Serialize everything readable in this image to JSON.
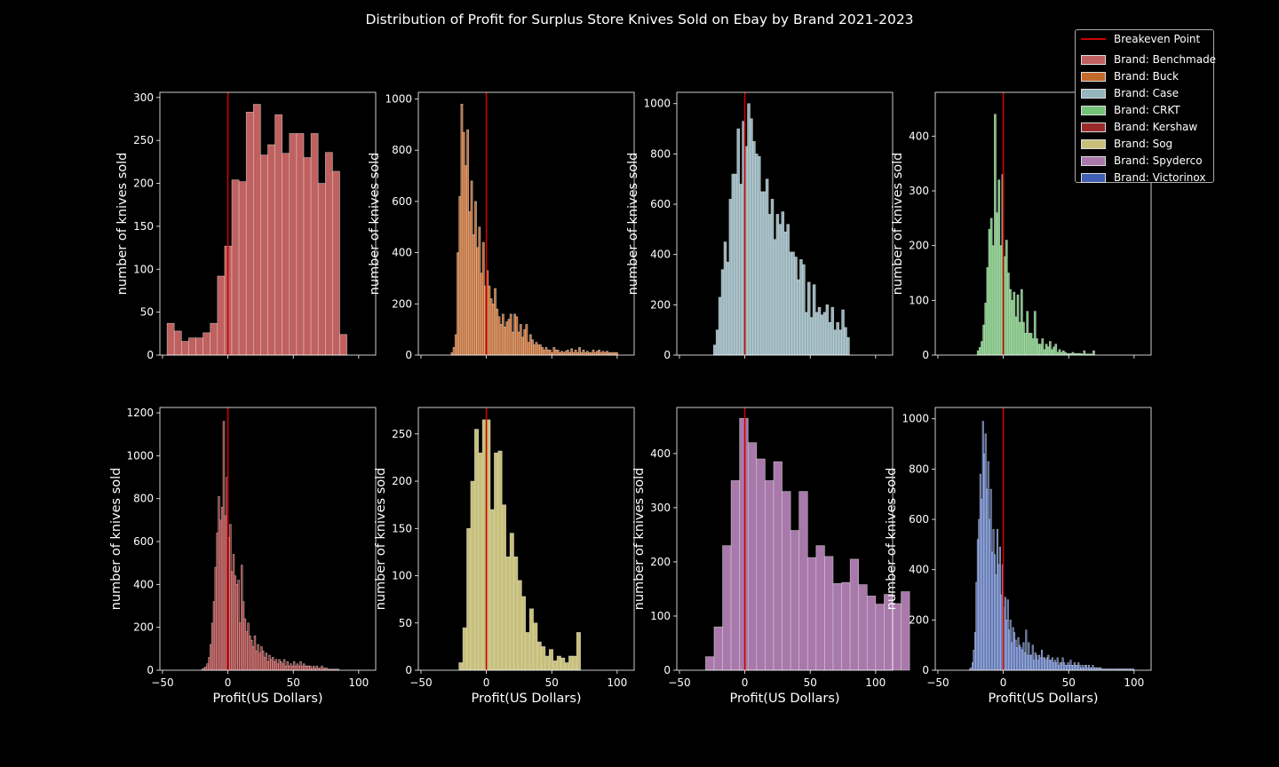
{
  "title": "Distribution of Profit for Surplus Store Knives Sold on Ebay by Brand 2021-2023",
  "legend": {
    "breakeven_label": "Breakeven Point",
    "breakeven_color": "#cc0000",
    "entries": [
      {
        "label": "Brand: Benchmade",
        "color": "#c0605f"
      },
      {
        "label": "Brand: Buck",
        "color": "#c4692c"
      },
      {
        "label": "Brand: Case",
        "color": "#96b4bc"
      },
      {
        "label": "Brand: CRKT",
        "color": "#74c276"
      },
      {
        "label": "Brand: Kershaw",
        "color": "#9a2a2a"
      },
      {
        "label": "Brand: Sog",
        "color": "#c8c078"
      },
      {
        "label": "Brand: Spyderco",
        "color": "#a879aa"
      },
      {
        "label": "Brand: Victorinox",
        "color": "#3f5fb4"
      }
    ]
  },
  "chart_data": [
    {
      "type": "bar",
      "brand": "Benchmade",
      "color": "#c0605f",
      "ylabel": "number of knives sold",
      "xlabel": "",
      "xlim": [
        -52,
        113
      ],
      "ylim": [
        0,
        306
      ],
      "yticks": [
        0,
        50,
        100,
        150,
        200,
        250,
        300
      ],
      "xticks": [
        -50,
        0,
        50,
        100
      ],
      "show_xticklabels": false,
      "bin_start": -46.5,
      "bin_width": 5.5,
      "values": [
        37,
        28,
        16,
        20,
        20,
        26,
        37,
        92,
        127,
        204,
        202,
        283,
        292,
        233,
        245,
        280,
        235,
        258,
        258,
        230,
        258,
        200,
        236,
        214,
        24
      ]
    },
    {
      "type": "bar",
      "brand": "Buck",
      "color": "#c4692c",
      "ylabel": "number of knives sold",
      "xlabel": "",
      "xlim": [
        -52,
        113
      ],
      "ylim": [
        0,
        1026
      ],
      "yticks": [
        0,
        200,
        400,
        600,
        800,
        1000
      ],
      "xticks": [
        -50,
        0,
        50,
        100
      ],
      "show_xticklabels": false,
      "bin_start": -27,
      "bin_width": 1.5,
      "values": [
        10,
        30,
        80,
        400,
        620,
        980,
        870,
        740,
        880,
        560,
        680,
        470,
        600,
        420,
        500,
        320,
        440,
        270,
        330,
        270,
        220,
        200,
        260,
        180,
        150,
        120,
        160,
        110,
        130,
        140,
        160,
        90,
        160,
        150,
        90,
        120,
        70,
        100,
        120,
        50,
        80,
        60,
        40,
        50,
        40,
        40,
        30,
        20,
        30,
        20,
        20,
        10,
        30,
        20,
        20,
        10,
        15,
        10,
        15,
        20,
        10,
        25,
        10,
        20,
        10,
        30,
        10,
        20,
        10,
        15,
        10,
        10,
        20,
        10,
        15,
        20,
        10,
        15,
        10,
        15,
        10,
        10,
        10,
        10,
        10
      ]
    },
    {
      "type": "bar",
      "brand": "Case",
      "color": "#96b4bc",
      "ylabel": "number of knives sold",
      "xlabel": "",
      "xlim": [
        -52,
        113
      ],
      "ylim": [
        0,
        1045
      ],
      "yticks": [
        0,
        200,
        400,
        600,
        800,
        1000
      ],
      "xticks": [
        -50,
        0,
        50,
        100
      ],
      "show_xticklabels": false,
      "bin_start": -24,
      "bin_width": 2,
      "values": [
        40,
        100,
        230,
        340,
        450,
        370,
        620,
        720,
        720,
        900,
        680,
        930,
        830,
        1000,
        940,
        850,
        800,
        790,
        650,
        650,
        700,
        560,
        620,
        460,
        560,
        520,
        570,
        490,
        520,
        410,
        410,
        390,
        300,
        380,
        360,
        170,
        290,
        150,
        280,
        170,
        190,
        160,
        170,
        200,
        130,
        190,
        100,
        130,
        100,
        180,
        110,
        70
      ]
    },
    {
      "type": "bar",
      "brand": "CRKT",
      "color": "#74c276",
      "ylabel": "number of knives sold",
      "xlabel": "",
      "xlim": [
        -52,
        113
      ],
      "ylim": [
        0,
        480
      ],
      "yticks": [
        0,
        100,
        200,
        300,
        400
      ],
      "xticks": [
        -50,
        0,
        50,
        100
      ],
      "show_xticklabels": false,
      "bin_start": -20,
      "bin_width": 1.45,
      "values": [
        8,
        14,
        25,
        55,
        95,
        160,
        230,
        250,
        200,
        440,
        260,
        320,
        200,
        330,
        180,
        210,
        150,
        120,
        100,
        115,
        70,
        110,
        60,
        120,
        60,
        40,
        80,
        40,
        40,
        30,
        80,
        30,
        20,
        20,
        30,
        10,
        20,
        15,
        25,
        10,
        15,
        20,
        5,
        10,
        5,
        8,
        5,
        3,
        3,
        3,
        5,
        3,
        3,
        3,
        3,
        2,
        8,
        2,
        2,
        2,
        2,
        8
      ]
    },
    {
      "type": "bar",
      "brand": "Kershaw",
      "color": "#9a2a2a",
      "ylabel": "number of knives sold",
      "xlabel": "Profit(US Dollars)",
      "xlim": [
        -52,
        113
      ],
      "ylim": [
        0,
        1225
      ],
      "yticks": [
        0,
        200,
        400,
        600,
        800,
        1000,
        1200
      ],
      "xticks": [
        -50,
        0,
        50,
        100
      ],
      "show_xticklabels": true,
      "bin_start": -20,
      "bin_width": 1.25,
      "values": [
        5,
        10,
        15,
        30,
        60,
        120,
        220,
        320,
        480,
        640,
        810,
        700,
        760,
        1160,
        720,
        900,
        620,
        680,
        460,
        540,
        440,
        400,
        420,
        220,
        490,
        320,
        240,
        180,
        220,
        160,
        140,
        110,
        160,
        90,
        120,
        80,
        110,
        90,
        60,
        80,
        40,
        70,
        50,
        60,
        40,
        50,
        30,
        50,
        40,
        30,
        50,
        20,
        40,
        20,
        30,
        20,
        40,
        20,
        30,
        20,
        40,
        20,
        30,
        20,
        20,
        20,
        20,
        10,
        20,
        10,
        20,
        10,
        10,
        20,
        10,
        10,
        10,
        5,
        5,
        5,
        5,
        5,
        5,
        5
      ]
    },
    {
      "type": "bar",
      "brand": "Sog",
      "color": "#c8c078",
      "ylabel": "number of knives sold",
      "xlabel": "Profit(US Dollars)",
      "xlim": [
        -52,
        113
      ],
      "ylim": [
        0,
        278
      ],
      "yticks": [
        0,
        50,
        100,
        150,
        200,
        250
      ],
      "xticks": [
        -50,
        0,
        50,
        100
      ],
      "show_xticklabels": true,
      "bin_start": -21,
      "bin_width": 3,
      "values": [
        8,
        45,
        150,
        200,
        255,
        230,
        265,
        265,
        170,
        230,
        232,
        175,
        120,
        145,
        120,
        95,
        78,
        40,
        65,
        50,
        30,
        25,
        15,
        22,
        10,
        15,
        13,
        8,
        15,
        15,
        40
      ]
    },
    {
      "type": "bar",
      "brand": "Spyderco",
      "color": "#a879aa",
      "ylabel": "number of knives sold",
      "xlabel": "Profit(US Dollars)",
      "xlim": [
        -52,
        113
      ],
      "ylim": [
        0,
        485
      ],
      "yticks": [
        0,
        100,
        200,
        300,
        400
      ],
      "xticks": [
        -50,
        0,
        50,
        100
      ],
      "show_xticklabels": true,
      "bin_start": -30,
      "bin_width": 6.5,
      "values": [
        25,
        80,
        230,
        350,
        465,
        420,
        390,
        350,
        385,
        330,
        258,
        330,
        208,
        230,
        210,
        160,
        162,
        205,
        158,
        137,
        122,
        140,
        123,
        145
      ]
    },
    {
      "type": "bar",
      "brand": "Victorinox",
      "color": "#3f5fb4",
      "ylabel": "number of knives sold",
      "xlabel": "Profit(US Dollars)",
      "xlim": [
        -52,
        113
      ],
      "ylim": [
        0,
        1045
      ],
      "yticks": [
        0,
        200,
        400,
        600,
        800,
        1000
      ],
      "xticks": [
        -50,
        0,
        50,
        100
      ],
      "show_xticklabels": true,
      "bin_start": -26,
      "bin_width": 1.0,
      "values": [
        5,
        10,
        30,
        80,
        150,
        350,
        520,
        600,
        780,
        680,
        990,
        860,
        940,
        720,
        830,
        600,
        720,
        470,
        560,
        460,
        380,
        560,
        420,
        490,
        300,
        420,
        250,
        290,
        200,
        280,
        160,
        200,
        110,
        170,
        150,
        120,
        90,
        130,
        100,
        90,
        80,
        110,
        70,
        160,
        60,
        110,
        60,
        60,
        100,
        40,
        70,
        60,
        40,
        60,
        50,
        80,
        50,
        50,
        40,
        50,
        60,
        40,
        40,
        50,
        30,
        40,
        30,
        50,
        20,
        30,
        30,
        50,
        30,
        20,
        20,
        30,
        20,
        40,
        20,
        20,
        30,
        20,
        20,
        30,
        20,
        10,
        20,
        10,
        20,
        20,
        10,
        20,
        10,
        10,
        20,
        10,
        10,
        10,
        10,
        10,
        10,
        5,
        5,
        5,
        5,
        5,
        5,
        5,
        5,
        5,
        5,
        5,
        5,
        5,
        5,
        5,
        5,
        5,
        5,
        5,
        5,
        5,
        5,
        5,
        5,
        5
      ]
    }
  ]
}
